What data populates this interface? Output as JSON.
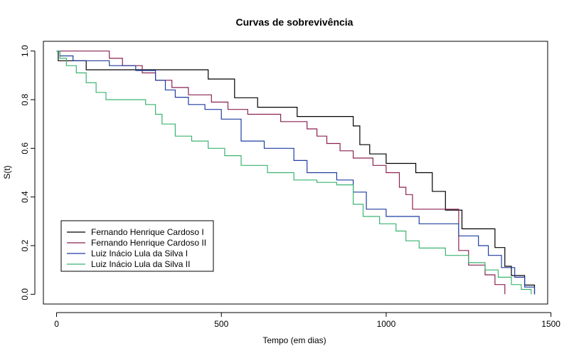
{
  "chart_data": {
    "type": "line",
    "step": true,
    "title": "Curvas de sobrevivência",
    "xlabel": "Tempo (em dias)",
    "ylabel": "S(t)",
    "xlim": [
      -40,
      1490
    ],
    "ylim": [
      -0.04,
      1.04
    ],
    "xticks": [
      0,
      500,
      1000,
      1500
    ],
    "yticks": [
      0.0,
      0.2,
      0.4,
      0.6,
      0.8,
      1.0
    ],
    "xtick_labels": [
      "0",
      "500",
      "1000",
      "1500"
    ],
    "ytick_labels": [
      "0.0",
      "0.2",
      "0.4",
      "0.6",
      "0.8",
      "1.0"
    ],
    "grid": false,
    "legend_position": "bottom-left",
    "series": [
      {
        "name": "Fernando Henrique Cardoso I",
        "color": "#000000",
        "x": [
          0,
          5,
          30,
          90,
          300,
          460,
          540,
          610,
          730,
          900,
          920,
          950,
          1000,
          1090,
          1140,
          1180,
          1230,
          1330,
          1360,
          1380,
          1420,
          1450
        ],
        "y": [
          1.0,
          0.96,
          0.96,
          0.923,
          0.923,
          0.885,
          0.808,
          0.769,
          0.731,
          0.692,
          0.615,
          0.577,
          0.538,
          0.5,
          0.423,
          0.346,
          0.269,
          0.192,
          0.115,
          0.077,
          0.038,
          0.0
        ]
      },
      {
        "name": "Fernando Henrique Cardoso II",
        "color": "#8b2252",
        "x": [
          0,
          160,
          200,
          260,
          300,
          350,
          400,
          470,
          520,
          580,
          680,
          760,
          790,
          820,
          860,
          900,
          960,
          1000,
          1040,
          1060,
          1080,
          1220,
          1250,
          1300,
          1330,
          1360
        ],
        "y": [
          1.0,
          0.97,
          0.94,
          0.91,
          0.88,
          0.85,
          0.82,
          0.79,
          0.76,
          0.74,
          0.71,
          0.68,
          0.65,
          0.62,
          0.59,
          0.56,
          0.53,
          0.5,
          0.44,
          0.41,
          0.35,
          0.18,
          0.12,
          0.08,
          0.04,
          0.0
        ]
      },
      {
        "name": "Luiz Inácio Lula da Silva I",
        "color": "#1f3fa0",
        "x": [
          0,
          10,
          50,
          160,
          240,
          300,
          330,
          360,
          400,
          450,
          500,
          560,
          630,
          720,
          760,
          850,
          900,
          940,
          1000,
          1100,
          1220,
          1280,
          1310,
          1350,
          1390,
          1420,
          1450
        ],
        "y": [
          1.0,
          0.98,
          0.96,
          0.94,
          0.92,
          0.88,
          0.84,
          0.81,
          0.78,
          0.76,
          0.72,
          0.63,
          0.6,
          0.55,
          0.5,
          0.47,
          0.42,
          0.35,
          0.32,
          0.29,
          0.24,
          0.2,
          0.16,
          0.11,
          0.07,
          0.03,
          0.0
        ]
      },
      {
        "name": "Luiz Inácio Lula da Silva II",
        "color": "#3cb371",
        "x": [
          0,
          10,
          30,
          60,
          90,
          120,
          150,
          270,
          300,
          320,
          360,
          410,
          460,
          510,
          560,
          640,
          720,
          790,
          850,
          900,
          930,
          980,
          1030,
          1060,
          1100,
          1180,
          1250,
          1300,
          1340,
          1380,
          1410,
          1440
        ],
        "y": [
          1.0,
          0.97,
          0.94,
          0.91,
          0.87,
          0.83,
          0.8,
          0.78,
          0.74,
          0.7,
          0.65,
          0.63,
          0.6,
          0.57,
          0.53,
          0.5,
          0.47,
          0.46,
          0.45,
          0.37,
          0.32,
          0.29,
          0.26,
          0.22,
          0.19,
          0.16,
          0.13,
          0.1,
          0.07,
          0.04,
          0.02,
          0.0
        ]
      }
    ]
  }
}
